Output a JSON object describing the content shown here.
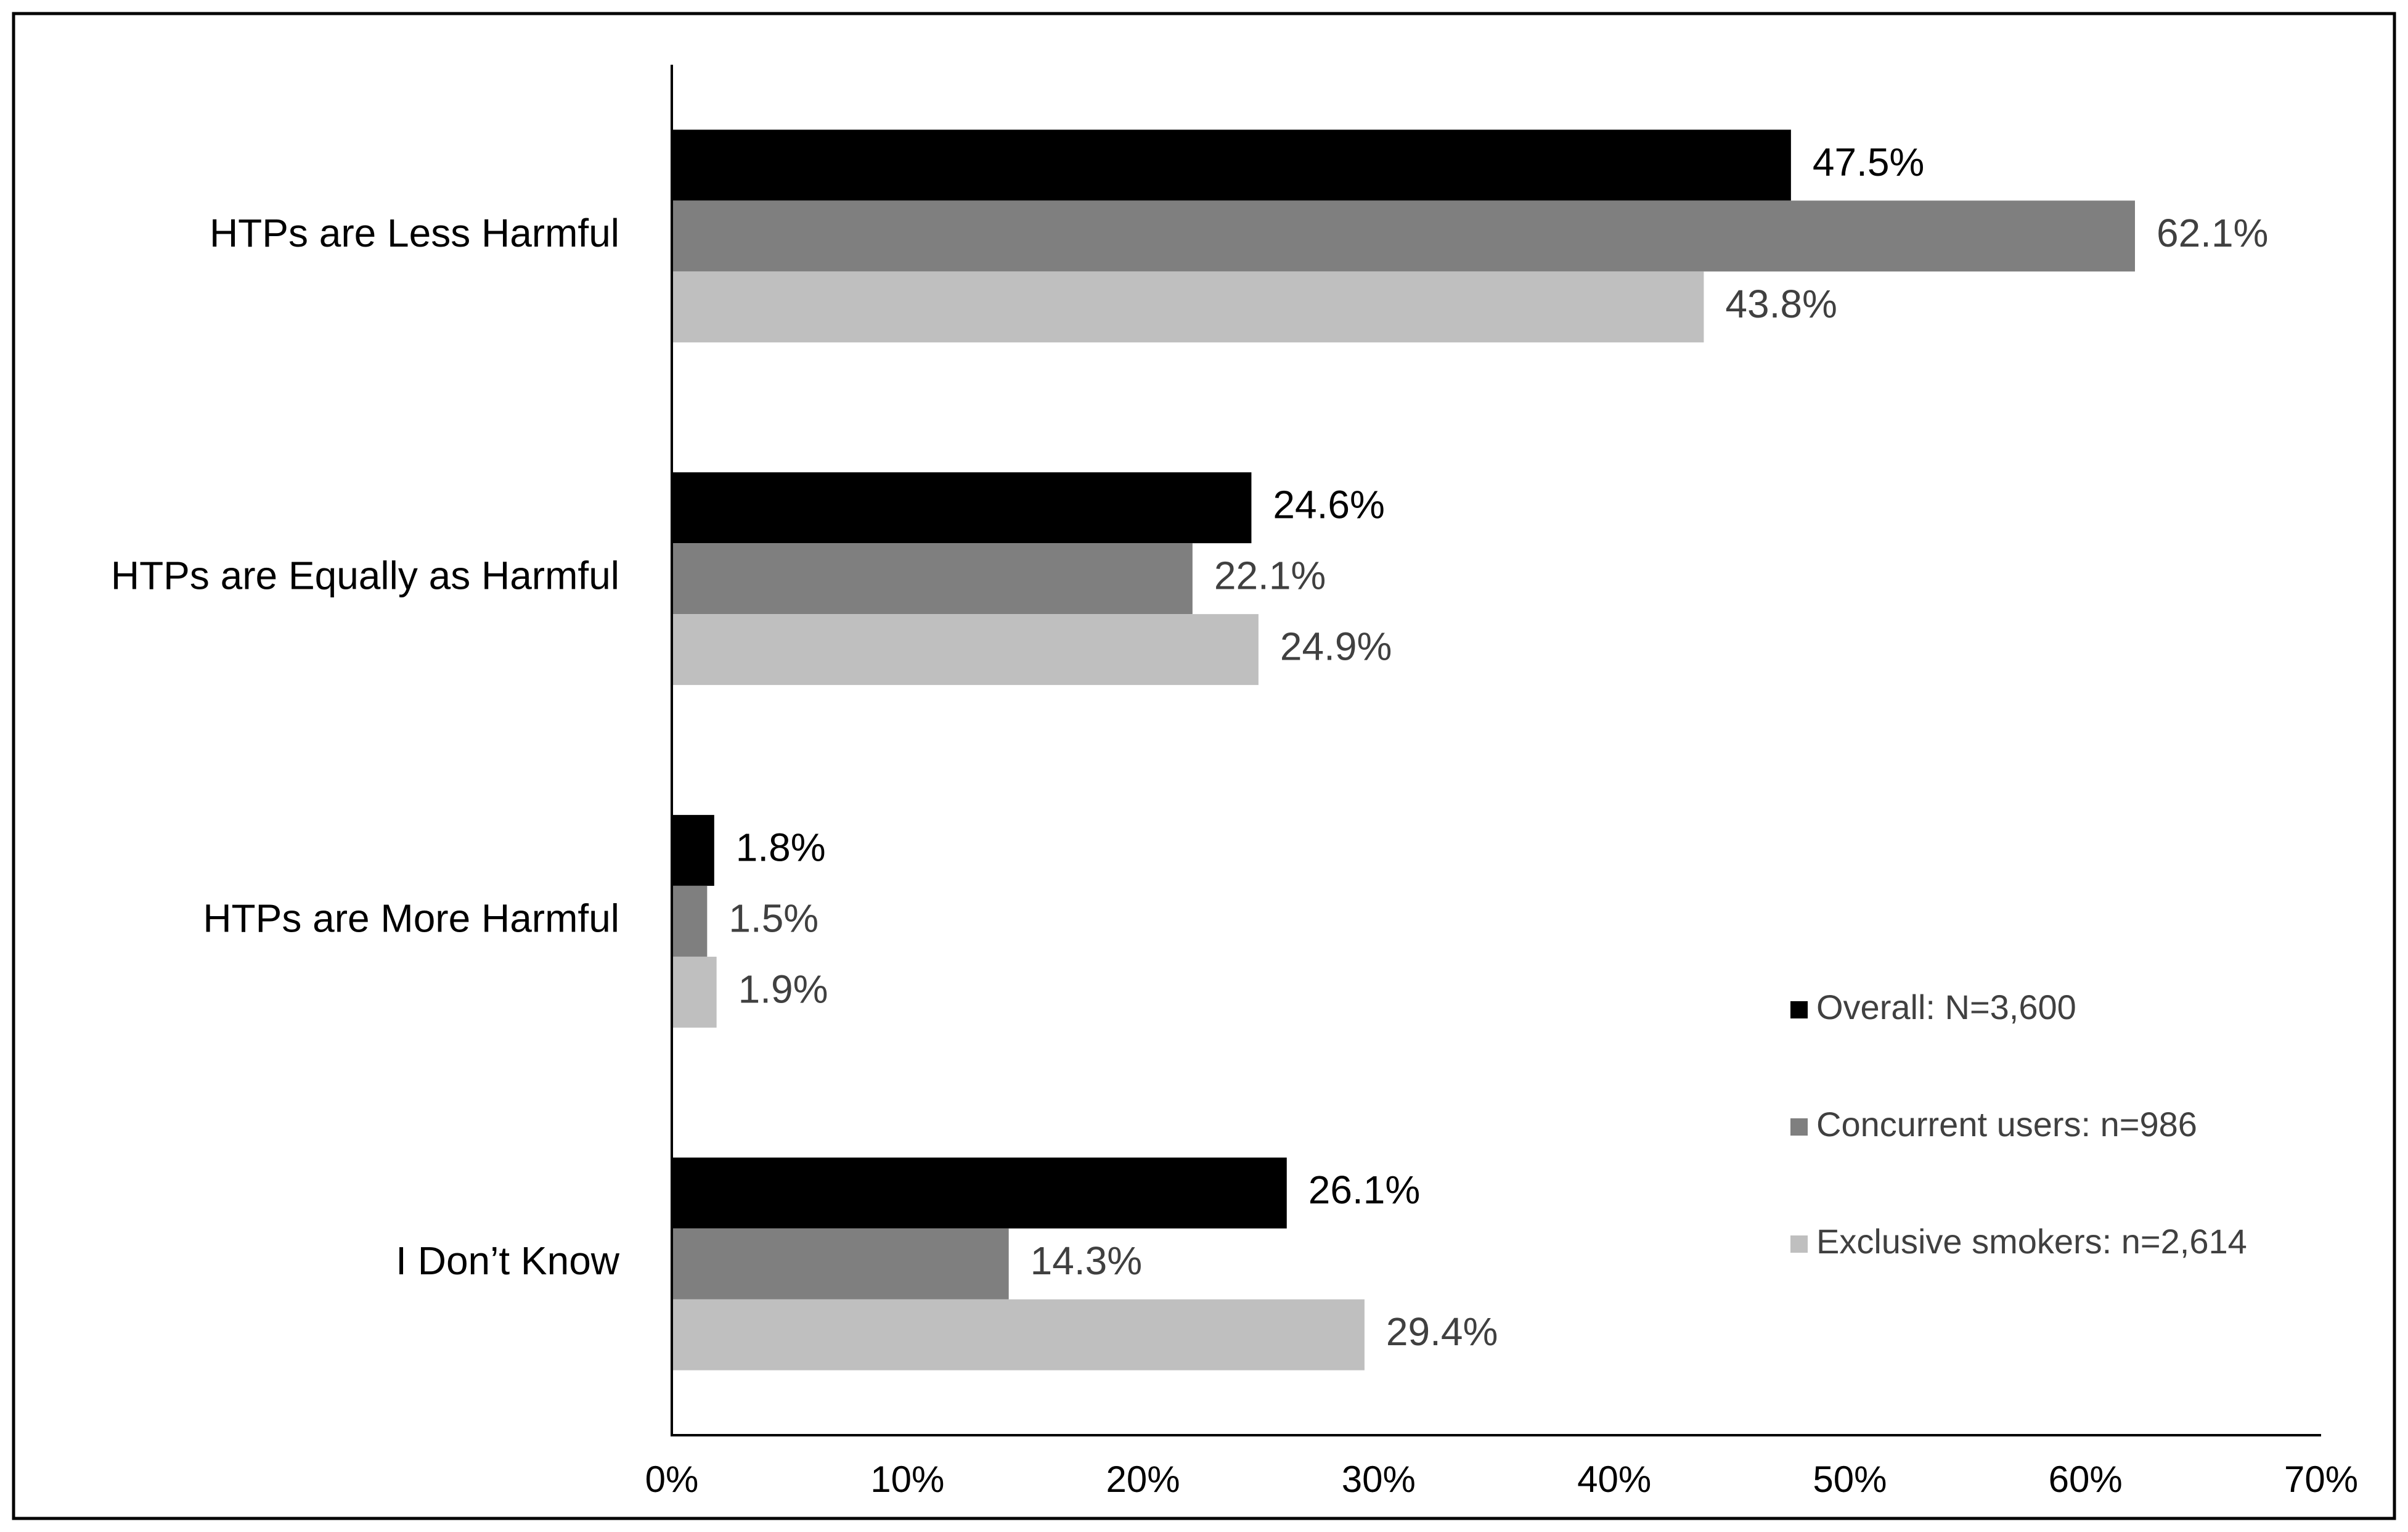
{
  "chart_data": {
    "type": "bar",
    "orientation": "horizontal",
    "categories": [
      "HTPs are Less Harmful",
      "HTPs are Equally as Harmful",
      "HTPs are More Harmful",
      "I Don’t Know"
    ],
    "series": [
      {
        "name": "Overall: N=3,600",
        "color": "#000000",
        "values": [
          47.5,
          24.6,
          1.8,
          26.1
        ],
        "labels": [
          "47.5%",
          "24.6%",
          "1.8%",
          "26.1%"
        ]
      },
      {
        "name": "Concurrent users: n=986",
        "color": "#7f7f7f",
        "values": [
          62.1,
          22.1,
          1.5,
          14.3
        ],
        "labels": [
          "62.1%",
          "22.1%",
          "1.5%",
          "14.3%"
        ]
      },
      {
        "name": "Exclusive smokers: n=2,614",
        "color": "#bfbfbf",
        "values": [
          43.8,
          24.9,
          1.9,
          29.4
        ],
        "labels": [
          "43.8%",
          "24.9%",
          "1.9%",
          "29.4%"
        ]
      }
    ],
    "xlim": [
      0,
      70
    ],
    "xticks": [
      0,
      10,
      20,
      30,
      40,
      50,
      60,
      70
    ],
    "xtick_labels": [
      "0%",
      "10%",
      "20%",
      "30%",
      "40%",
      "50%",
      "60%",
      "70%"
    ],
    "grid": false,
    "legend_position": "bottom-right",
    "title": "",
    "xlabel": "",
    "ylabel": ""
  }
}
